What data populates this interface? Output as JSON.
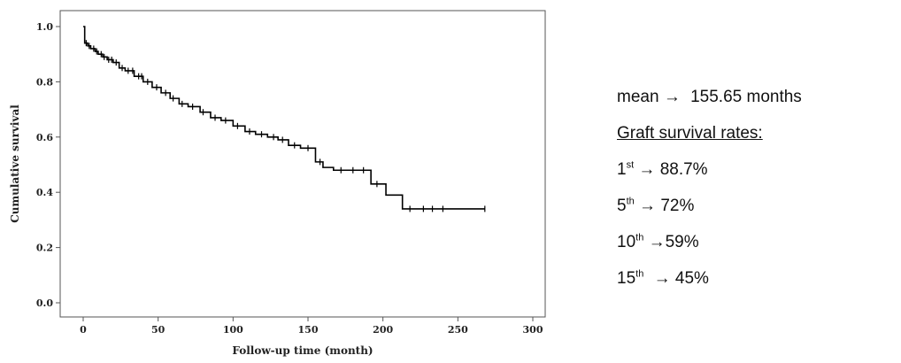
{
  "chart_data": {
    "type": "line",
    "subtype": "kaplan-meier step",
    "title": "",
    "xlabel": "Follow-up time (month)",
    "ylabel": "Cumulative survival",
    "xlim": [
      0,
      300
    ],
    "ylim": [
      0,
      1
    ],
    "x_ticks": [
      0,
      50,
      100,
      150,
      200,
      250,
      300
    ],
    "x_tick_labels": [
      "0",
      "50",
      "100",
      "150",
      "200",
      "250",
      "300"
    ],
    "y_ticks": [
      0,
      0.2,
      0.4,
      0.6,
      0.8,
      1.0
    ],
    "y_tick_labels": [
      "0.0",
      "0.2",
      "0.4",
      "0.6",
      "0.8",
      "1.0"
    ],
    "grid": false,
    "line_color": "#000000",
    "series": [
      {
        "x": [
          0,
          1,
          3,
          5,
          8,
          10,
          13,
          16,
          20,
          24,
          28,
          34,
          40,
          46,
          52,
          58,
          64,
          70,
          78,
          85,
          92,
          100,
          108,
          115,
          123,
          130,
          137,
          145,
          155,
          160,
          167,
          192,
          202,
          213,
          268
        ],
        "y": [
          1.0,
          0.94,
          0.93,
          0.92,
          0.91,
          0.9,
          0.89,
          0.88,
          0.87,
          0.85,
          0.84,
          0.82,
          0.8,
          0.78,
          0.76,
          0.74,
          0.72,
          0.71,
          0.69,
          0.67,
          0.66,
          0.64,
          0.62,
          0.61,
          0.6,
          0.59,
          0.57,
          0.56,
          0.51,
          0.49,
          0.48,
          0.43,
          0.39,
          0.34,
          0.34
        ]
      }
    ],
    "censor_x": [
      2,
      4,
      7,
      9,
      12,
      14,
      17,
      19,
      22,
      26,
      30,
      33,
      37,
      39,
      43,
      49,
      55,
      60,
      66,
      73,
      80,
      88,
      95,
      103,
      111,
      119,
      127,
      133,
      141,
      150,
      158,
      172,
      180,
      187,
      196,
      218,
      227,
      233,
      240,
      268
    ]
  },
  "stats": {
    "mean_label": "mean",
    "arrow": "→",
    "mean_value": "155.65 months",
    "heading": "Graft survival rates:",
    "rates": [
      {
        "num": "1",
        "suffix": "st",
        "value": "88.7%"
      },
      {
        "num": "5",
        "suffix": "th",
        "value": "72%"
      },
      {
        "num": "10",
        "suffix": "th",
        "value": "59%"
      },
      {
        "num": "15",
        "suffix": "th",
        "value": "45%"
      }
    ]
  }
}
